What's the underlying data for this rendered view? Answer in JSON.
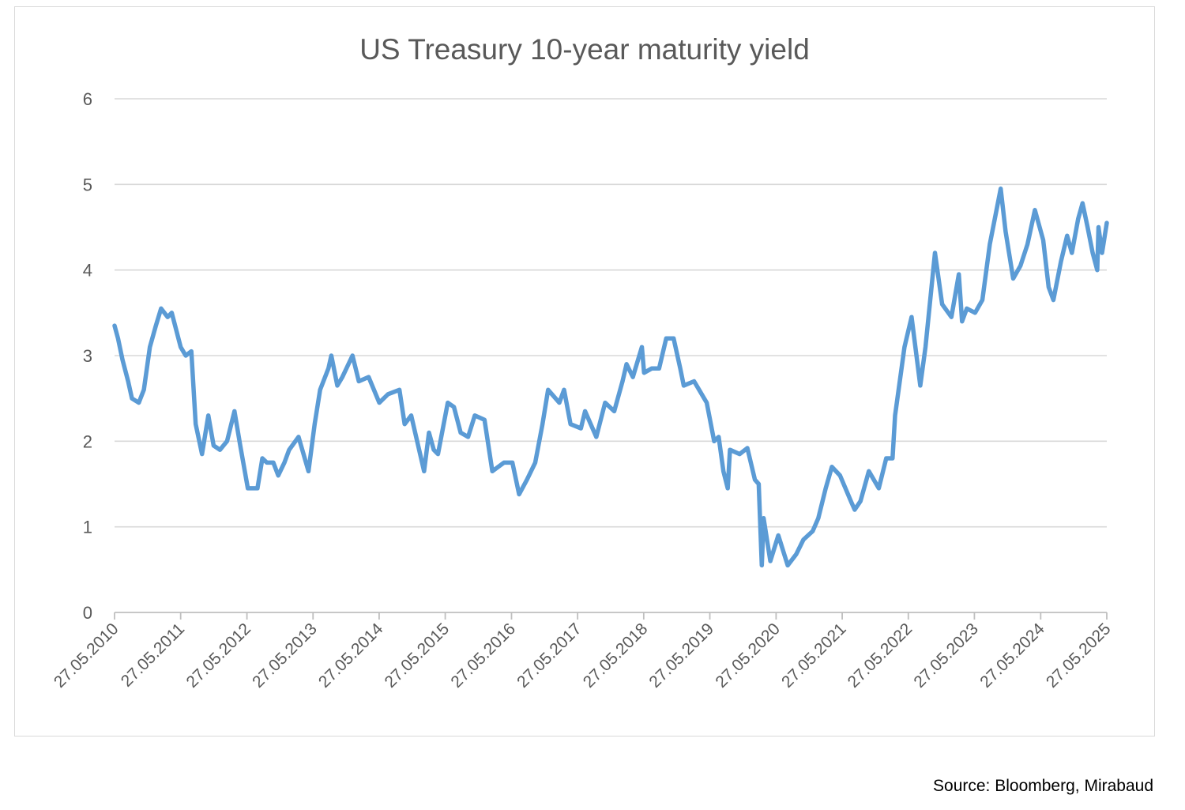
{
  "chart_data": {
    "type": "line",
    "title": "US Treasury 10-year maturity yield",
    "xlabel": "",
    "ylabel": "",
    "ylim": [
      0,
      6
    ],
    "yticks": [
      0,
      1,
      2,
      3,
      4,
      5,
      6
    ],
    "xlim": [
      "2010-05-27",
      "2025-05-27"
    ],
    "xticks": [
      "27.05.2010",
      "27.05.2011",
      "27.05.2012",
      "27.05.2013",
      "27.05.2014",
      "27.05.2015",
      "27.05.2016",
      "27.05.2017",
      "27.05.2018",
      "27.05.2019",
      "27.05.2020",
      "27.05.2021",
      "27.05.2022",
      "27.05.2023",
      "27.05.2024",
      "27.05.2025"
    ],
    "grid": "horizontal",
    "legend": "none",
    "line_color": "#5b9bd5",
    "series": [
      {
        "x": [
          "2010-05-27",
          "2010-06-15",
          "2010-07-10",
          "2010-08-10",
          "2010-08-31",
          "2010-10-08",
          "2010-11-05",
          "2010-12-08",
          "2011-01-10",
          "2011-02-08",
          "2011-03-16",
          "2011-04-08",
          "2011-05-27",
          "2011-06-24",
          "2011-07-25",
          "2011-08-18",
          "2011-09-22",
          "2011-10-27",
          "2011-11-25",
          "2011-12-30",
          "2012-02-07",
          "2012-03-19",
          "2012-04-20",
          "2012-06-01",
          "2012-07-24",
          "2012-08-20",
          "2012-09-14",
          "2012-10-20",
          "2012-11-16",
          "2012-12-20",
          "2013-01-15",
          "2013-03-08",
          "2013-05-02",
          "2013-06-05",
          "2013-07-05",
          "2013-08-20",
          "2013-09-05",
          "2013-10-08",
          "2013-11-05",
          "2013-12-31",
          "2014-02-04",
          "2014-03-30",
          "2014-05-28",
          "2014-07-15",
          "2014-09-16",
          "2014-10-15",
          "2014-11-20",
          "2015-01-30",
          "2015-02-26",
          "2015-03-25",
          "2015-04-17",
          "2015-06-10",
          "2015-07-14",
          "2015-08-20",
          "2015-09-30",
          "2015-11-06",
          "2015-12-30",
          "2016-02-11",
          "2016-04-15",
          "2016-06-01",
          "2016-07-08",
          "2016-08-20",
          "2016-10-05",
          "2016-11-14",
          "2016-12-15",
          "2017-02-15",
          "2017-03-13",
          "2017-04-18",
          "2017-06-14",
          "2017-07-07",
          "2017-09-07",
          "2017-10-26",
          "2017-12-15",
          "2018-01-30",
          "2018-02-21",
          "2018-03-28",
          "2018-05-17",
          "2018-05-29",
          "2018-07-10",
          "2018-08-20",
          "2018-09-28",
          "2018-11-08",
          "2018-12-15",
          "2019-01-03",
          "2019-03-01",
          "2019-05-10",
          "2019-06-20",
          "2019-07-15",
          "2019-08-10",
          "2019-09-03",
          "2019-09-15",
          "2019-11-08",
          "2019-12-20",
          "2020-01-31",
          "2020-02-21",
          "2020-03-09",
          "2020-03-19",
          "2020-04-25",
          "2020-06-08",
          "2020-07-30",
          "2020-09-15",
          "2020-10-25",
          "2020-12-15",
          "2021-01-15",
          "2021-02-25",
          "2021-03-31",
          "2021-05-15",
          "2021-07-18",
          "2021-08-04",
          "2021-09-05",
          "2021-10-21",
          "2021-12-15",
          "2022-01-25",
          "2022-03-01",
          "2022-03-15",
          "2022-05-06",
          "2022-06-14",
          "2022-08-01",
          "2022-08-30",
          "2022-10-21",
          "2022-11-30",
          "2023-01-20",
          "2023-03-02",
          "2023-03-20",
          "2023-04-15",
          "2023-05-31",
          "2023-07-10",
          "2023-08-20",
          "2023-10-19",
          "2023-11-15",
          "2023-12-27",
          "2024-02-05",
          "2024-03-15",
          "2024-04-25",
          "2024-06-10",
          "2024-07-10",
          "2024-08-05",
          "2024-09-16",
          "2024-10-20",
          "2024-11-15",
          "2024-12-20",
          "2025-01-13",
          "2025-02-10",
          "2025-03-10",
          "2025-04-04",
          "2025-04-11",
          "2025-05-01",
          "2025-05-27"
        ],
        "y": [
          3.35,
          3.2,
          2.95,
          2.7,
          2.5,
          2.45,
          2.6,
          3.1,
          3.35,
          3.55,
          3.45,
          3.5,
          3.1,
          3.0,
          3.05,
          2.2,
          1.85,
          2.3,
          1.95,
          1.9,
          2.0,
          2.35,
          1.95,
          1.45,
          1.45,
          1.8,
          1.75,
          1.75,
          1.6,
          1.75,
          1.9,
          2.05,
          1.65,
          2.2,
          2.6,
          2.85,
          3.0,
          2.65,
          2.75,
          3.0,
          2.7,
          2.75,
          2.45,
          2.55,
          2.6,
          2.2,
          2.3,
          1.65,
          2.1,
          1.9,
          1.85,
          2.45,
          2.4,
          2.1,
          2.05,
          2.3,
          2.25,
          1.65,
          1.75,
          1.75,
          1.38,
          1.55,
          1.75,
          2.2,
          2.6,
          2.45,
          2.6,
          2.2,
          2.15,
          2.35,
          2.05,
          2.45,
          2.35,
          2.7,
          2.9,
          2.75,
          3.1,
          2.8,
          2.85,
          2.85,
          3.2,
          3.2,
          2.85,
          2.65,
          2.7,
          2.45,
          2.0,
          2.05,
          1.65,
          1.45,
          1.9,
          1.85,
          1.92,
          1.55,
          1.5,
          0.55,
          1.1,
          0.6,
          0.9,
          0.55,
          0.68,
          0.85,
          0.95,
          1.1,
          1.45,
          1.7,
          1.6,
          1.28,
          1.2,
          1.3,
          1.65,
          1.45,
          1.8,
          1.8,
          2.3,
          3.1,
          3.45,
          2.65,
          3.1,
          4.2,
          3.6,
          3.45,
          3.95,
          3.4,
          3.55,
          3.5,
          3.65,
          4.3,
          4.95,
          4.45,
          3.9,
          4.05,
          4.3,
          4.7,
          4.35,
          3.8,
          3.65,
          4.1,
          4.4,
          4.2,
          4.6,
          4.78,
          4.5,
          4.2,
          4.0,
          4.5,
          4.2,
          4.55
        ]
      }
    ]
  },
  "source": "Source: Bloomberg, Mirabaud"
}
